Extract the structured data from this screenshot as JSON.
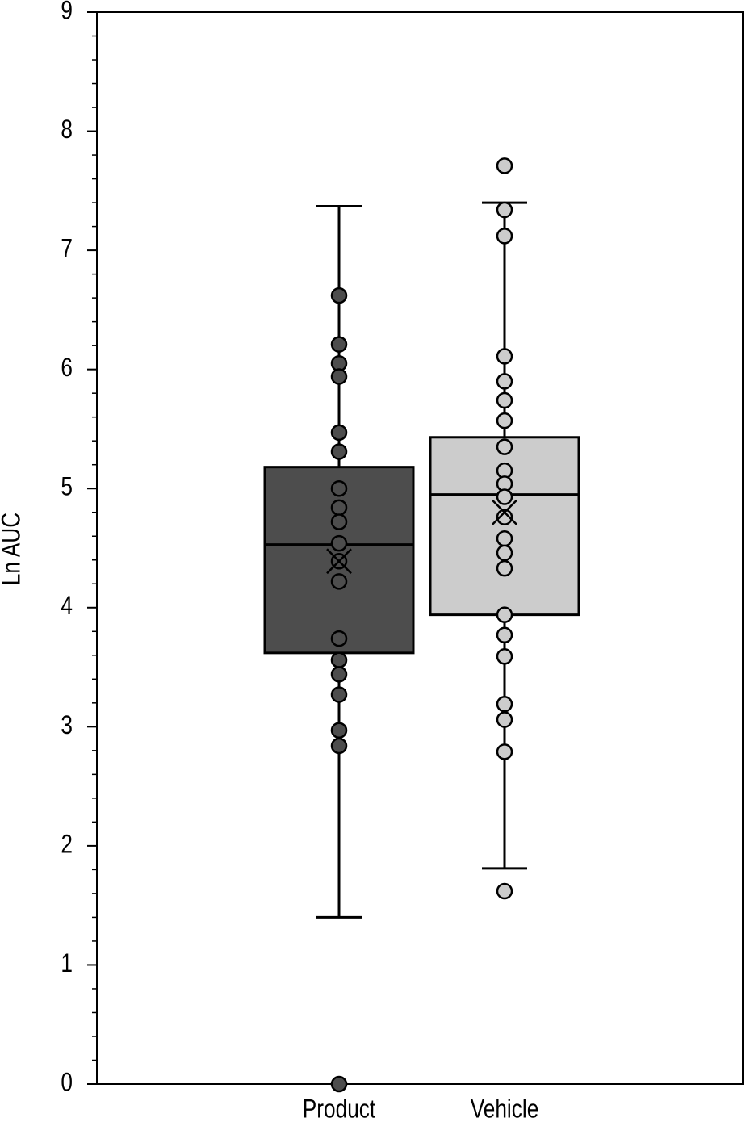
{
  "chart_data": {
    "type": "box",
    "ylabel": "Ln AUC",
    "ylim": [
      0,
      9
    ],
    "yticks": [
      0,
      1,
      2,
      3,
      4,
      5,
      6,
      7,
      8,
      9
    ],
    "yminor_per_major": 4,
    "categories": [
      "Product",
      "Vehicle"
    ],
    "series": [
      {
        "color": "#4d4d4d",
        "whisker_low": 1.4,
        "q1": 3.62,
        "median": 4.53,
        "q3": 5.18,
        "whisker_high": 7.37,
        "mean": 4.39,
        "points": [
          6.62,
          6.21,
          6.05,
          5.94,
          5.47,
          5.31,
          5.0,
          4.84,
          4.72,
          4.54,
          4.39,
          4.22,
          3.74,
          3.56,
          3.44,
          3.27,
          2.97,
          2.84,
          0
        ]
      },
      {
        "color": "#cccccc",
        "whisker_low": 1.81,
        "q1": 3.94,
        "median": 4.95,
        "q3": 5.43,
        "whisker_high": 7.4,
        "mean": 4.8,
        "points": [
          7.71,
          7.34,
          7.12,
          6.11,
          5.9,
          5.74,
          5.57,
          5.35,
          5.15,
          5.04,
          4.93,
          4.76,
          4.58,
          4.46,
          4.33,
          3.94,
          3.77,
          3.59,
          3.19,
          3.06,
          2.79,
          1.62
        ]
      }
    ]
  }
}
